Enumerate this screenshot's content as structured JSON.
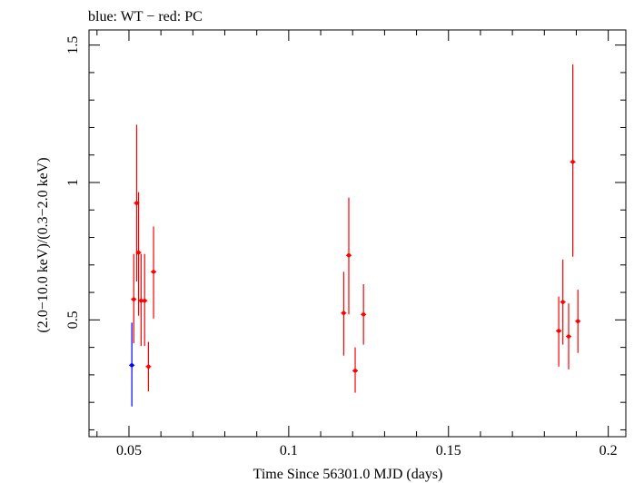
{
  "chart_data": {
    "type": "scatter",
    "title": "blue: WT − red: PC",
    "xlabel": "Time Since 56301.0 MJD (days)",
    "ylabel": "(2.0−10.0 keV)/(0.3−2.0 keV)",
    "xlim": [
      0.0375,
      0.2055
    ],
    "ylim": [
      0.075,
      1.555
    ],
    "x_ticks": [
      {
        "value": 0.05,
        "label": "0.05"
      },
      {
        "value": 0.1,
        "label": "0.1"
      },
      {
        "value": 0.15,
        "label": "0.15"
      },
      {
        "value": 0.2,
        "label": "0.2"
      }
    ],
    "y_ticks": [
      {
        "value": 0.5,
        "label": "0.5"
      },
      {
        "value": 1.0,
        "label": "1"
      },
      {
        "value": 1.5,
        "label": "1.5"
      }
    ],
    "series": [
      {
        "name": "WT",
        "color": "#0000ff",
        "points": [
          {
            "x": 0.0509,
            "y": 0.335,
            "yerr_low": 0.185,
            "yerr_high": 0.49
          }
        ]
      },
      {
        "name": "PC",
        "color": "#ff0000",
        "points": [
          {
            "x": 0.0515,
            "y": 0.575,
            "yerr_low": 0.415,
            "yerr_high": 0.74
          },
          {
            "x": 0.0524,
            "y": 0.925,
            "yerr_low": 0.64,
            "yerr_high": 1.21
          },
          {
            "x": 0.053,
            "y": 0.745,
            "yerr_low": 0.515,
            "yerr_high": 0.965
          },
          {
            "x": 0.0538,
            "y": 0.57,
            "yerr_low": 0.405,
            "yerr_high": 0.74
          },
          {
            "x": 0.0549,
            "y": 0.57,
            "yerr_low": 0.405,
            "yerr_high": 0.74
          },
          {
            "x": 0.0561,
            "y": 0.33,
            "yerr_low": 0.24,
            "yerr_high": 0.42
          },
          {
            "x": 0.0577,
            "y": 0.675,
            "yerr_low": 0.505,
            "yerr_high": 0.84
          },
          {
            "x": 0.1172,
            "y": 0.525,
            "yerr_low": 0.37,
            "yerr_high": 0.675
          },
          {
            "x": 0.1188,
            "y": 0.735,
            "yerr_low": 0.52,
            "yerr_high": 0.945
          },
          {
            "x": 0.1208,
            "y": 0.315,
            "yerr_low": 0.235,
            "yerr_high": 0.4
          },
          {
            "x": 0.1234,
            "y": 0.52,
            "yerr_low": 0.41,
            "yerr_high": 0.63
          },
          {
            "x": 0.1845,
            "y": 0.46,
            "yerr_low": 0.33,
            "yerr_high": 0.585
          },
          {
            "x": 0.1858,
            "y": 0.565,
            "yerr_low": 0.41,
            "yerr_high": 0.72
          },
          {
            "x": 0.1876,
            "y": 0.44,
            "yerr_low": 0.32,
            "yerr_high": 0.56
          },
          {
            "x": 0.1889,
            "y": 1.075,
            "yerr_low": 0.73,
            "yerr_high": 1.43
          },
          {
            "x": 0.1905,
            "y": 0.495,
            "yerr_low": 0.38,
            "yerr_high": 0.61
          }
        ]
      }
    ]
  }
}
